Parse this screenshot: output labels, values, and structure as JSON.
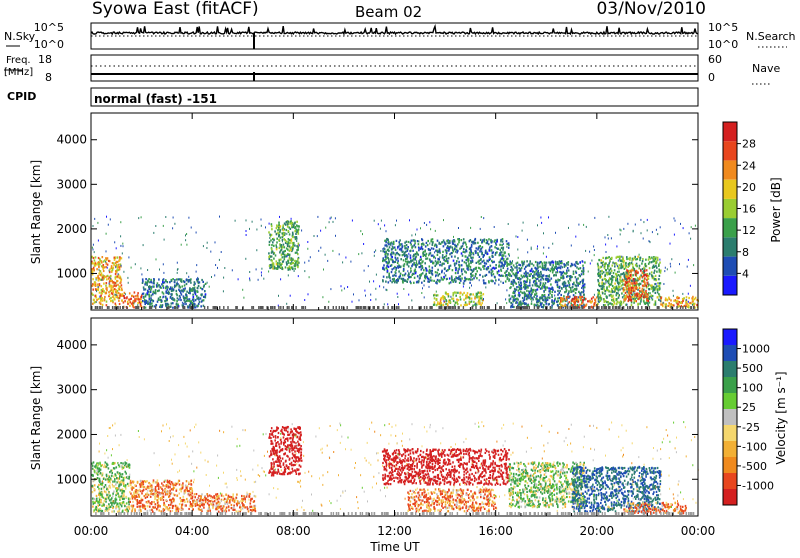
{
  "header": {
    "station": "Syowa East (fitACF)",
    "beam": "Beam 02",
    "date": "03/Nov/2010"
  },
  "status_panels": {
    "nsky_label": "N.Sky",
    "nsky_ticks": [
      "10^5",
      "10^0"
    ],
    "nsearch_label": "N.Search",
    "nsearch_ticks": [
      "10^5",
      "10^0"
    ],
    "freq_label": "Freq.",
    "freq_unit": "[MHz]",
    "freq_ticks": [
      "18",
      "8"
    ],
    "nave_label": "Nave",
    "nave_ticks": [
      "60",
      "0"
    ],
    "cpid_label": "CPID",
    "cpid_value": "normal (fast) -151"
  },
  "chart_data": [
    {
      "type": "heatmap",
      "name": "power",
      "ylabel": "Slant Range [km]",
      "xlabel": "",
      "y_ticks": [
        "1000",
        "2000",
        "3000",
        "4000"
      ],
      "y_tick_values": [
        1000,
        2000,
        3000,
        4000
      ],
      "ylim": [
        180,
        4600
      ],
      "colorbar_label": "Power [dB]",
      "colorbar_ticks": [
        "4",
        "8",
        "12",
        "16",
        "20",
        "24",
        "28"
      ],
      "colorbar_range": [
        0,
        30
      ],
      "colorbar_colors": [
        "#1a1aff",
        "#1e4db4",
        "#2b7d6e",
        "#3aa04a",
        "#9acd32",
        "#e8c81e",
        "#f08a1e",
        "#e8461e",
        "#d42020"
      ],
      "approx_echo_regions": [
        {
          "t0": 0.0,
          "t1": 1.2,
          "r0": 300,
          "r1": 1400,
          "value": 20
        },
        {
          "t0": 1.2,
          "t1": 2.0,
          "r0": 250,
          "r1": 600,
          "value": 24
        },
        {
          "t0": 2.0,
          "t1": 4.5,
          "r0": 250,
          "r1": 900,
          "value": 8
        },
        {
          "t0": 7.0,
          "t1": 8.2,
          "r0": 1100,
          "r1": 2200,
          "value": 12
        },
        {
          "t0": 11.5,
          "t1": 16.5,
          "r0": 800,
          "r1": 1800,
          "value": 8
        },
        {
          "t0": 13.5,
          "t1": 15.5,
          "r0": 300,
          "r1": 600,
          "value": 16
        },
        {
          "t0": 16.5,
          "t1": 19.5,
          "r0": 250,
          "r1": 1300,
          "value": 8
        },
        {
          "t0": 18.5,
          "t1": 20.0,
          "r0": 250,
          "r1": 500,
          "value": 24
        },
        {
          "t0": 20.0,
          "t1": 22.5,
          "r0": 300,
          "r1": 1400,
          "value": 12
        },
        {
          "t0": 21.0,
          "t1": 22.0,
          "r0": 400,
          "r1": 1100,
          "value": 24
        },
        {
          "t0": 22.5,
          "t1": 24.0,
          "r0": 250,
          "r1": 500,
          "value": 20
        }
      ]
    },
    {
      "type": "heatmap",
      "name": "velocity",
      "ylabel": "Slant Range [km]",
      "xlabel": "Time UT",
      "x_ticks": [
        "00:00",
        "04:00",
        "08:00",
        "12:00",
        "16:00",
        "20:00",
        "00:00"
      ],
      "x_tick_hours": [
        0,
        4,
        8,
        12,
        16,
        20,
        24
      ],
      "y_ticks": [
        "1000",
        "2000",
        "3000",
        "4000"
      ],
      "y_tick_values": [
        1000,
        2000,
        3000,
        4000
      ],
      "ylim": [
        180,
        4600
      ],
      "colorbar_label": "Velocity [m s⁻¹]",
      "colorbar_ticks": [
        "1000",
        "500",
        "100",
        "25",
        "-25",
        "-100",
        "-500",
        "-1000"
      ],
      "colorbar_colors": [
        "#1a1aff",
        "#1e4db4",
        "#2b7d6e",
        "#3aa04a",
        "#66cc33",
        "#c0c0c0",
        "#f5d76e",
        "#f2b035",
        "#ef8a1e",
        "#e8461e",
        "#d42020"
      ],
      "approx_echo_regions": [
        {
          "t0": 0.0,
          "t1": 1.5,
          "r0": 300,
          "r1": 1400,
          "value": 100
        },
        {
          "t0": 1.5,
          "t1": 4.0,
          "r0": 300,
          "r1": 1000,
          "value": -100
        },
        {
          "t0": 4.0,
          "t1": 6.5,
          "r0": 300,
          "r1": 700,
          "value": -100
        },
        {
          "t0": 7.0,
          "t1": 8.3,
          "r0": 1100,
          "r1": 2200,
          "value": -500
        },
        {
          "t0": 11.5,
          "t1": 16.5,
          "r0": 900,
          "r1": 1700,
          "value": -500
        },
        {
          "t0": 12.5,
          "t1": 16.0,
          "r0": 300,
          "r1": 800,
          "value": -100
        },
        {
          "t0": 16.5,
          "t1": 19.5,
          "r0": 400,
          "r1": 1400,
          "value": 100
        },
        {
          "t0": 19.0,
          "t1": 22.5,
          "r0": 300,
          "r1": 1300,
          "value": 500
        },
        {
          "t0": 21.0,
          "t1": 23.5,
          "r0": 250,
          "r1": 500,
          "value": -100
        }
      ]
    }
  ]
}
